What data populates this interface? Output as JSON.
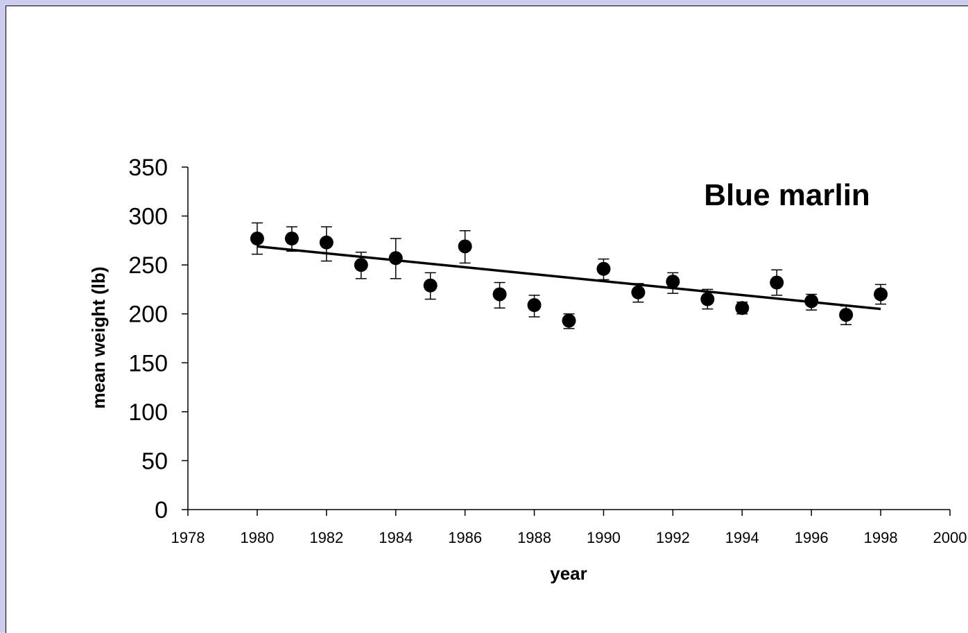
{
  "chart_data": {
    "type": "scatter",
    "title": "Blue marlin",
    "xlabel": "year",
    "ylabel": "mean weight (lb)",
    "xlim": [
      1978,
      2000
    ],
    "ylim": [
      0,
      350
    ],
    "x_ticks": [
      1978,
      1980,
      1982,
      1984,
      1986,
      1988,
      1990,
      1992,
      1994,
      1996,
      1998,
      2000
    ],
    "y_ticks": [
      0,
      50,
      100,
      150,
      200,
      250,
      300,
      350
    ],
    "grid": false,
    "series": [
      {
        "x": [
          1980,
          1981,
          1982,
          1983,
          1984,
          1985,
          1986,
          1987,
          1988,
          1989,
          1990,
          1991,
          1992,
          1993,
          1994,
          1995,
          1996,
          1997,
          1998
        ],
        "y": [
          277,
          277,
          273,
          250,
          257,
          229,
          269,
          220,
          209,
          193,
          246,
          222,
          233,
          215,
          206,
          232,
          213,
          199,
          220
        ],
        "err_low": [
          16,
          13,
          19,
          14,
          21,
          14,
          17,
          14,
          12,
          8,
          11,
          10,
          12,
          10,
          6,
          13,
          9,
          10,
          10
        ],
        "err_high": [
          16,
          12,
          16,
          13,
          20,
          13,
          16,
          12,
          10,
          7,
          10,
          9,
          9,
          10,
          6,
          13,
          7,
          9,
          10
        ]
      }
    ],
    "trendline": {
      "x": [
        1980,
        1998
      ],
      "y": [
        269,
        205
      ]
    }
  }
}
